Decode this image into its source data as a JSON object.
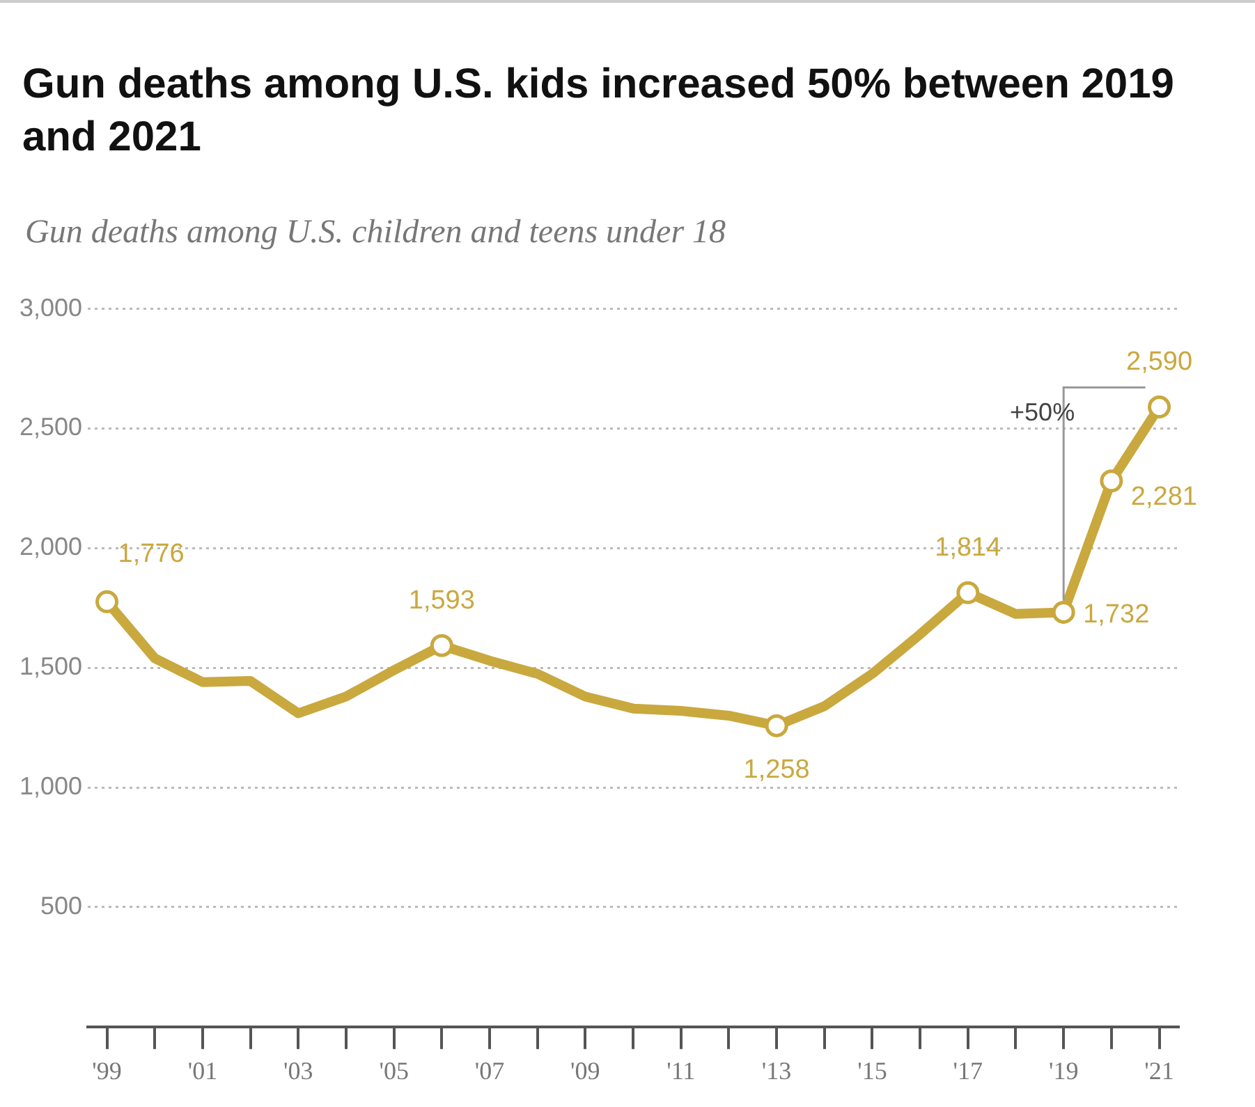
{
  "chart_data": {
    "type": "line",
    "title": "Gun deaths among U.S. kids increased 50% between 2019 and 2021",
    "subtitle": "Gun deaths among U.S. children and teens under 18",
    "x": [
      1999,
      2000,
      2001,
      2002,
      2003,
      2004,
      2005,
      2006,
      2007,
      2008,
      2009,
      2010,
      2011,
      2012,
      2013,
      2014,
      2015,
      2016,
      2017,
      2018,
      2019,
      2020,
      2021
    ],
    "series": [
      {
        "color": "#c9a83e",
        "values": [
          1776,
          1540,
          1440,
          1445,
          1310,
          1380,
          1490,
          1593,
          1530,
          1475,
          1380,
          1330,
          1320,
          1300,
          1258,
          1340,
          1475,
          1640,
          1814,
          1725,
          1732,
          2281,
          2590
        ],
        "value_labels": [
          "1,776",
          null,
          null,
          null,
          null,
          null,
          null,
          "1,593",
          null,
          null,
          null,
          null,
          null,
          null,
          "1,258",
          null,
          null,
          null,
          "1,814",
          null,
          "1,732",
          "2,281",
          "2,590"
        ]
      }
    ],
    "xlim": [
      1998.6,
      2021.4
    ],
    "xticks": [
      {
        "value": 1999,
        "label": "'99"
      },
      {
        "value": 2000,
        "label": null
      },
      {
        "value": 2001,
        "label": "'01"
      },
      {
        "value": 2002,
        "label": null
      },
      {
        "value": 2003,
        "label": "'03"
      },
      {
        "value": 2004,
        "label": null
      },
      {
        "value": 2005,
        "label": "'05"
      },
      {
        "value": 2006,
        "label": null
      },
      {
        "value": 2007,
        "label": "'07"
      },
      {
        "value": 2008,
        "label": null
      },
      {
        "value": 2009,
        "label": "'09"
      },
      {
        "value": 2010,
        "label": null
      },
      {
        "value": 2011,
        "label": "'11"
      },
      {
        "value": 2012,
        "label": null
      },
      {
        "value": 2013,
        "label": "'13"
      },
      {
        "value": 2014,
        "label": null
      },
      {
        "value": 2015,
        "label": "'15"
      },
      {
        "value": 2016,
        "label": null
      },
      {
        "value": 2017,
        "label": "'17"
      },
      {
        "value": 2018,
        "label": null
      },
      {
        "value": 2019,
        "label": "'19"
      },
      {
        "value": 2020,
        "label": null
      },
      {
        "value": 2021,
        "label": "'21"
      }
    ],
    "ylim": [
      0,
      3000
    ],
    "yticks": [
      {
        "value": 500,
        "label": "500"
      },
      {
        "value": 1000,
        "label": "1,000"
      },
      {
        "value": 1500,
        "label": "1,500"
      },
      {
        "value": 2000,
        "label": "2,000"
      },
      {
        "value": 2500,
        "label": "2,500"
      },
      {
        "value": 3000,
        "label": "3,000"
      }
    ],
    "grid": "y",
    "legend": false,
    "line_style": "solid",
    "annotations": [
      "+50%"
    ]
  }
}
